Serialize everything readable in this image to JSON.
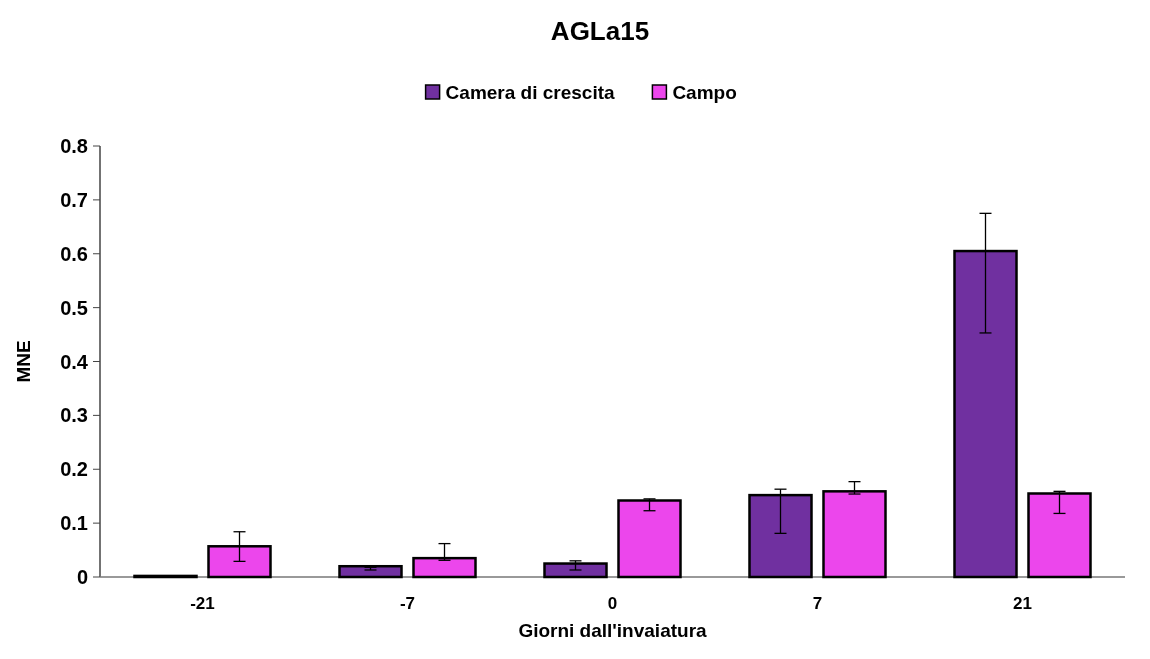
{
  "chart_data": {
    "type": "bar",
    "title": "AGLa15",
    "xlabel": "Giorni dall'invaiatura",
    "ylabel": "MNE",
    "categories": [
      "-21",
      "-7",
      "0",
      "7",
      "21"
    ],
    "series": [
      {
        "name": "Camera di crescita",
        "color": "#7030a0",
        "values": [
          0.002,
          0.02,
          0.025,
          0.152,
          0.605
        ],
        "errors": [
          null,
          [
            0.013,
            0.018
          ],
          [
            0.013,
            0.03
          ],
          [
            0.081,
            0.163
          ],
          [
            0.453,
            0.675
          ]
        ]
      },
      {
        "name": "Campo",
        "color": "#ec46ec",
        "values": [
          0.057,
          0.035,
          0.142,
          0.159,
          0.155
        ],
        "errors": [
          [
            0.029,
            0.084
          ],
          [
            0.031,
            0.062
          ],
          [
            0.123,
            0.145
          ],
          [
            0.154,
            0.177
          ],
          [
            0.118,
            0.159
          ]
        ]
      }
    ],
    "ylim": [
      0,
      0.8
    ],
    "yticks": [
      0,
      0.1,
      0.2,
      0.3,
      0.4,
      0.5,
      0.6,
      0.7,
      0.8
    ],
    "legend": "top",
    "grid": false
  }
}
